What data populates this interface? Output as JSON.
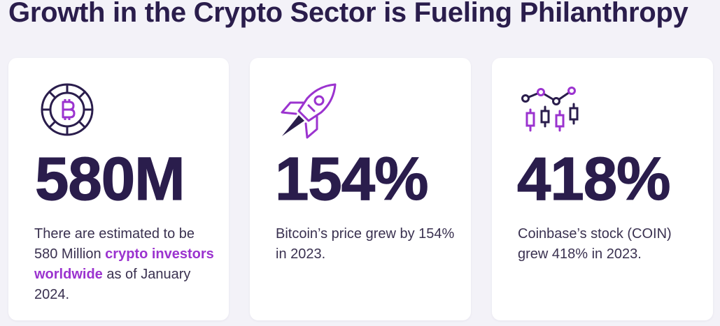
{
  "page": {
    "title": "Growth in the Crypto Sector is Fueling Philanthropy"
  },
  "colors": {
    "dark": "#2a1d4c",
    "accent": "#9b33cf",
    "background": "#f3f2f8",
    "card": "#ffffff"
  },
  "cards": [
    {
      "icon": "bitcoin-coin-icon",
      "value": "580M",
      "desc_before": "There are estimated to be 580 Million ",
      "desc_highlight": "crypto investors worldwide",
      "desc_after": " as of January 2024."
    },
    {
      "icon": "rocket-icon",
      "value": "154%",
      "desc": "Bitcoin’s price grew by 154% in 2023."
    },
    {
      "icon": "candlestick-chart-icon",
      "value": "418%",
      "desc": "Coinbase’s stock (COIN) grew 418% in 2023."
    }
  ]
}
